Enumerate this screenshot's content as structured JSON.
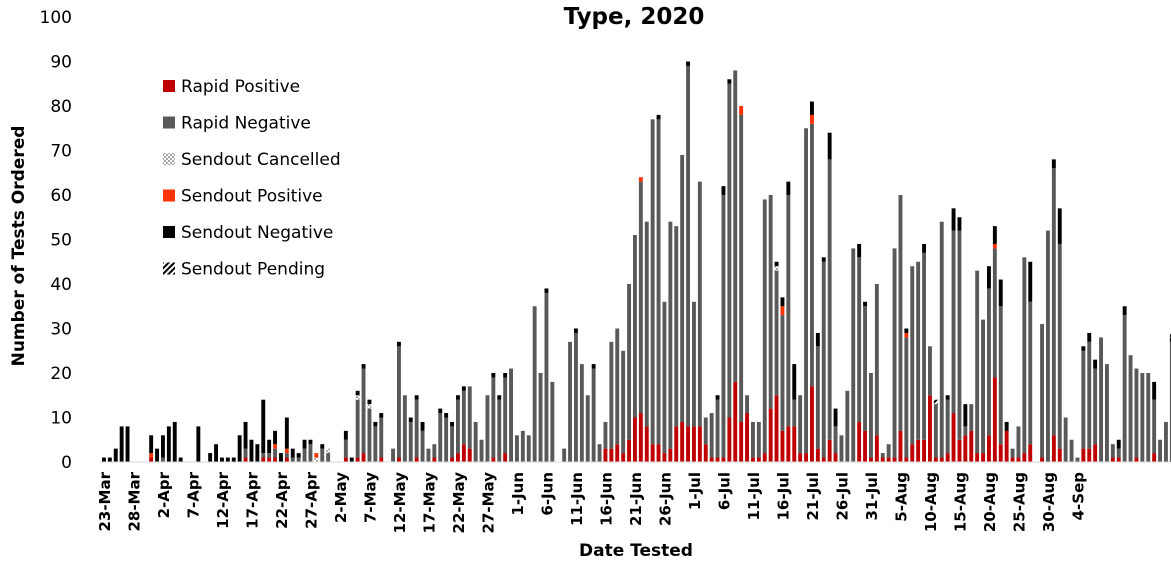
{
  "chart_data": {
    "type": "bar",
    "stacked": true,
    "title": "Type, 2020",
    "xlabel": "Date Tested",
    "ylabel": "Number of Tests Ordered",
    "ylim": [
      0,
      100
    ],
    "yticks": [
      0,
      10,
      20,
      30,
      40,
      50,
      60,
      70,
      80,
      90,
      100
    ],
    "grid": false,
    "legend_position": "top-left",
    "start_date": "2020-03-23",
    "x_tick_labels": [
      "23-Mar",
      "28-Mar",
      "2-Apr",
      "7-Apr",
      "12-Apr",
      "17-Apr",
      "22-Apr",
      "27-Apr",
      "2-May",
      "7-May",
      "12-May",
      "17-May",
      "22-May",
      "27-May",
      "1-Jun",
      "6-Jun",
      "11-Jun",
      "16-Jun",
      "21-Jun",
      "26-Jun",
      "1-Jul",
      "6-Jul",
      "11-Jul",
      "16-Jul",
      "21-Jul",
      "26-Jul",
      "31-Jul",
      "5-Aug",
      "10-Aug",
      "15-Aug",
      "20-Aug",
      "25-Aug",
      "30-Aug",
      "4-Sep"
    ],
    "series": [
      {
        "name": "Rapid Positive",
        "color": "#c00000",
        "pattern": "solid",
        "values": [
          0,
          0,
          0,
          0,
          0,
          0,
          0,
          0,
          1,
          0,
          0,
          0,
          0,
          0,
          0,
          0,
          0,
          0,
          0,
          0,
          0,
          0,
          0,
          0,
          1,
          0,
          0,
          1,
          1,
          1,
          0,
          1,
          0,
          0,
          0,
          0,
          0,
          0,
          0,
          0,
          0,
          1,
          0,
          1,
          2,
          0,
          0,
          1,
          0,
          0,
          1,
          0,
          0,
          1,
          0,
          0,
          1,
          0,
          0,
          1,
          2,
          4,
          3,
          0,
          0,
          0,
          1,
          0,
          2,
          0,
          0,
          0,
          0,
          0,
          0,
          0,
          0,
          0,
          0,
          0,
          0,
          0,
          0,
          0,
          0,
          3,
          3,
          4,
          2,
          5,
          10,
          11,
          8,
          4,
          4,
          2,
          3,
          8,
          9,
          8,
          8,
          8,
          4,
          1,
          1,
          1,
          10,
          18,
          9,
          11,
          1,
          1,
          2,
          12,
          15,
          7,
          8,
          8,
          2,
          2,
          17,
          3,
          1,
          5,
          2,
          0,
          0,
          0,
          9,
          7,
          1,
          6,
          1,
          1,
          1,
          7,
          1,
          4,
          5,
          5,
          15,
          1,
          1,
          2,
          11,
          5,
          6,
          7,
          2,
          2,
          6,
          19,
          4,
          7,
          1,
          1,
          2,
          4,
          0,
          1,
          0,
          6,
          3,
          0,
          0,
          0,
          3,
          3,
          4,
          0,
          0,
          1,
          1,
          0,
          0,
          1,
          0,
          0,
          2,
          0,
          0,
          0
        ]
      },
      {
        "name": "Rapid Negative",
        "color": "#595959",
        "pattern": "solid",
        "values": [
          0,
          0,
          0,
          0,
          0,
          0,
          0,
          0,
          0,
          0,
          1,
          0,
          0,
          0,
          0,
          0,
          0,
          0,
          0,
          0,
          0,
          0,
          0,
          0,
          2,
          0,
          0,
          1,
          1,
          2,
          0,
          1,
          1,
          1,
          3,
          4,
          0,
          3,
          2,
          0,
          0,
          4,
          0,
          13,
          19,
          12,
          8,
          9,
          0,
          3,
          25,
          15,
          9,
          13,
          7,
          3,
          3,
          11,
          10,
          7,
          12,
          12,
          14,
          9,
          5,
          15,
          18,
          14,
          17,
          21,
          6,
          7,
          6,
          35,
          20,
          38,
          18,
          0,
          3,
          27,
          29,
          22,
          15,
          21,
          4,
          6,
          24,
          26,
          23,
          35,
          41,
          52,
          46,
          73,
          73,
          34,
          51,
          45,
          60,
          81,
          28,
          55,
          6,
          10,
          13,
          59,
          75,
          70,
          69,
          4,
          8,
          8,
          57,
          48,
          28,
          26,
          52,
          6,
          13,
          73,
          59,
          23,
          44,
          63,
          6,
          6,
          16,
          48,
          37,
          28,
          19,
          34,
          1,
          3,
          47,
          53,
          27,
          40,
          40,
          42,
          11,
          12,
          53,
          12,
          41,
          47,
          2,
          6,
          41,
          30,
          33,
          29,
          31,
          0,
          2,
          7,
          44,
          32,
          0,
          30,
          52,
          60,
          46,
          10,
          5,
          1,
          22,
          24,
          17,
          28,
          22,
          3,
          2,
          33,
          24,
          20,
          20,
          20,
          12,
          5,
          9,
          27
        ]
      },
      {
        "name": "Sendout Cancelled",
        "color": "#a6a6a6",
        "pattern": "checker",
        "values": [
          0,
          0,
          0,
          0,
          0,
          0,
          0,
          0,
          0,
          0,
          0,
          0,
          0,
          0,
          0,
          0,
          0,
          0,
          0,
          0,
          0,
          0,
          0,
          0,
          0,
          0,
          0,
          0,
          0,
          0,
          0,
          0,
          0,
          0,
          0,
          0,
          1,
          0,
          1,
          0,
          0,
          0,
          0,
          1,
          0,
          1,
          0,
          0,
          0,
          0,
          0,
          0,
          0,
          0,
          0,
          0,
          0,
          0,
          0,
          0,
          0,
          0,
          0,
          0,
          0,
          0,
          0,
          0,
          0,
          0,
          0,
          0,
          0,
          0,
          0,
          0,
          0,
          0,
          0,
          0,
          0,
          0,
          0,
          0,
          0,
          0,
          0,
          0,
          0,
          0,
          0,
          0,
          0,
          0,
          0,
          0,
          0,
          0,
          0,
          0,
          0,
          0,
          0,
          0,
          0,
          0,
          0,
          0,
          0,
          0,
          0,
          0,
          0,
          0,
          1,
          0,
          0,
          0,
          0,
          0,
          0,
          0,
          0,
          0,
          0,
          0,
          0,
          0,
          0,
          0,
          0,
          0,
          0,
          0,
          0,
          0,
          0,
          0,
          0,
          0,
          0,
          0,
          0,
          0,
          0,
          0,
          0,
          0,
          0,
          0,
          0,
          0,
          0,
          0,
          0,
          0,
          0,
          0,
          0,
          0,
          0,
          0,
          0,
          0,
          0,
          0,
          0,
          0,
          0,
          0,
          0,
          0,
          0,
          0,
          0,
          0,
          0,
          0,
          0,
          0,
          0,
          0
        ]
      },
      {
        "name": "Sendout Positive",
        "color": "#ff3300",
        "pattern": "solid",
        "values": [
          0,
          0,
          0,
          0,
          0,
          0,
          0,
          0,
          1,
          0,
          0,
          0,
          0,
          0,
          0,
          0,
          0,
          0,
          0,
          0,
          0,
          0,
          0,
          0,
          0,
          0,
          0,
          0,
          0,
          1,
          0,
          1,
          0,
          0,
          0,
          0,
          1,
          0,
          0,
          0,
          0,
          0,
          0,
          0,
          0,
          0,
          0,
          0,
          0,
          0,
          0,
          0,
          0,
          0,
          0,
          0,
          0,
          0,
          0,
          0,
          0,
          0,
          0,
          0,
          0,
          0,
          0,
          0,
          0,
          0,
          0,
          0,
          0,
          0,
          0,
          0,
          0,
          0,
          0,
          0,
          0,
          0,
          0,
          0,
          0,
          0,
          0,
          0,
          0,
          0,
          0,
          1,
          0,
          0,
          0,
          0,
          0,
          0,
          0,
          0,
          0,
          0,
          0,
          0,
          0,
          0,
          0,
          0,
          2,
          0,
          0,
          0,
          0,
          0,
          0,
          2,
          0,
          0,
          0,
          0,
          2,
          0,
          0,
          0,
          0,
          0,
          0,
          0,
          0,
          0,
          0,
          0,
          0,
          0,
          0,
          0,
          1,
          0,
          0,
          0,
          0,
          0,
          0,
          0,
          0,
          0,
          0,
          0,
          0,
          0,
          0,
          1,
          0,
          0,
          0,
          0,
          0,
          0,
          0,
          0,
          0,
          0,
          0,
          0,
          0,
          0,
          0,
          0,
          0,
          0,
          0,
          0,
          0,
          0,
          0,
          0,
          0,
          0,
          0,
          0,
          0,
          0
        ]
      },
      {
        "name": "Sendout Negative",
        "color": "#000000",
        "pattern": "solid",
        "values": [
          1,
          1,
          3,
          8,
          8,
          0,
          0,
          0,
          4,
          3,
          5,
          8,
          9,
          1,
          0,
          0,
          8,
          0,
          2,
          4,
          1,
          1,
          1,
          6,
          6,
          5,
          4,
          12,
          3,
          3,
          2,
          7,
          2,
          1,
          2,
          1,
          0,
          1,
          0,
          0,
          0,
          2,
          1,
          1,
          1,
          1,
          1,
          1,
          0,
          0,
          1,
          0,
          1,
          1,
          2,
          0,
          0,
          1,
          1,
          1,
          1,
          1,
          0,
          0,
          0,
          0,
          1,
          1,
          1,
          0,
          0,
          0,
          0,
          0,
          0,
          1,
          0,
          0,
          0,
          0,
          1,
          0,
          0,
          1,
          0,
          0,
          0,
          0,
          0,
          0,
          0,
          0,
          0,
          0,
          1,
          0,
          0,
          0,
          0,
          1,
          0,
          0,
          0,
          0,
          1,
          2,
          1,
          0,
          0,
          0,
          0,
          0,
          0,
          0,
          1,
          2,
          3,
          8,
          0,
          0,
          3,
          3,
          1,
          6,
          4,
          0,
          0,
          0,
          3,
          1,
          0,
          0,
          0,
          0,
          0,
          0,
          1,
          0,
          0,
          2,
          0,
          0,
          0,
          1,
          5,
          3,
          5,
          0,
          0,
          0,
          5,
          4,
          6,
          2,
          0,
          0,
          0,
          9,
          0,
          0,
          0,
          2,
          8,
          0,
          0,
          0,
          1,
          2,
          2,
          0,
          0,
          0,
          2,
          2,
          0,
          0,
          0,
          0,
          4,
          0,
          0,
          1
        ]
      },
      {
        "name": "Sendout Pending",
        "color": "#000000",
        "pattern": "diagonal",
        "values": [
          0,
          0,
          0,
          0,
          0,
          0,
          0,
          0,
          0,
          0,
          0,
          0,
          0,
          0,
          0,
          0,
          0,
          0,
          0,
          0,
          0,
          0,
          0,
          0,
          0,
          0,
          0,
          0,
          0,
          0,
          0,
          0,
          0,
          0,
          0,
          0,
          0,
          0,
          0,
          0,
          0,
          0,
          0,
          0,
          0,
          0,
          0,
          0,
          0,
          0,
          0,
          0,
          0,
          0,
          0,
          0,
          0,
          0,
          0,
          0,
          0,
          0,
          0,
          0,
          0,
          0,
          0,
          0,
          0,
          0,
          0,
          0,
          0,
          0,
          0,
          0,
          0,
          0,
          0,
          0,
          0,
          0,
          0,
          0,
          0,
          0,
          0,
          0,
          0,
          0,
          0,
          0,
          0,
          0,
          0,
          0,
          0,
          0,
          0,
          0,
          0,
          0,
          0,
          0,
          0,
          0,
          0,
          0,
          0,
          0,
          0,
          0,
          0,
          0,
          0,
          0,
          0,
          0,
          0,
          0,
          0,
          0,
          0,
          0,
          0,
          0,
          0,
          0,
          0,
          0,
          0,
          0,
          0,
          0,
          0,
          0,
          0,
          0,
          0,
          0,
          0,
          1,
          0,
          0,
          0,
          0,
          0,
          0,
          0,
          0,
          0,
          0,
          0,
          0,
          0,
          0,
          0,
          0,
          0,
          0,
          0,
          0,
          0,
          0,
          0,
          0,
          0,
          0,
          0,
          0,
          0,
          0,
          0,
          0,
          0,
          0,
          0,
          0,
          0,
          0,
          0,
          1
        ]
      }
    ]
  }
}
